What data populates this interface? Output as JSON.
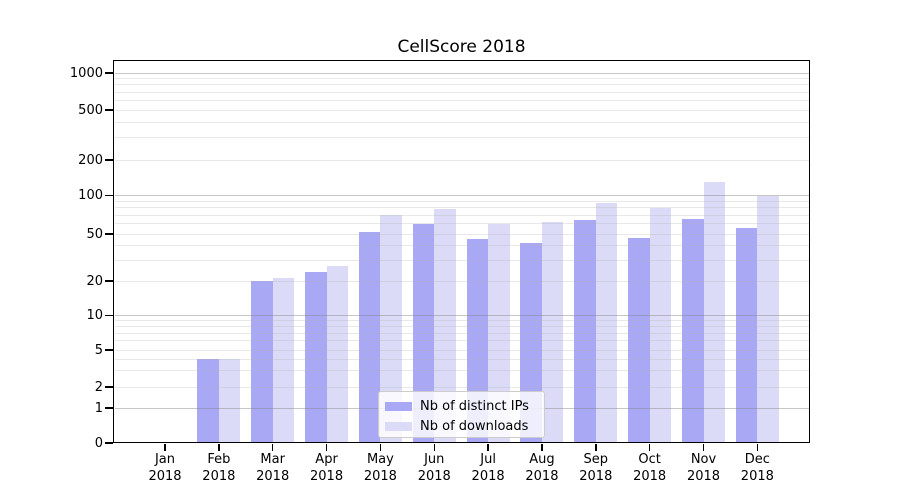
{
  "chart_data": {
    "type": "bar",
    "title": "CellScore 2018",
    "months": [
      "Jan",
      "Feb",
      "Mar",
      "Apr",
      "May",
      "Jun",
      "Jul",
      "Aug",
      "Sep",
      "Oct",
      "Nov",
      "Dec"
    ],
    "year": "2018",
    "categories": [
      "Jan 2018",
      "Feb 2018",
      "Mar 2018",
      "Apr 2018",
      "May 2018",
      "Jun 2018",
      "Jul 2018",
      "Aug 2018",
      "Sep 2018",
      "Oct 2018",
      "Nov 2018",
      "Dec 2018"
    ],
    "series": [
      {
        "name": "Nb of distinct IPs",
        "color": "#a8a8f5",
        "values": [
          0,
          4,
          20,
          24,
          52,
          60,
          45,
          42,
          64,
          46,
          66,
          56
        ]
      },
      {
        "name": "Nb of downloads",
        "color": "#dbdbf8",
        "values": [
          0,
          4,
          21,
          27,
          70,
          78,
          60,
          62,
          88,
          80,
          130,
          100
        ]
      }
    ],
    "y_ticks": [
      0,
      1,
      2,
      5,
      10,
      20,
      50,
      100,
      200,
      500,
      1000
    ],
    "grid_major": [
      1,
      10,
      100,
      1000
    ],
    "grid_minor": [
      2,
      3,
      4,
      5,
      6,
      7,
      8,
      9,
      20,
      30,
      40,
      50,
      60,
      70,
      80,
      90,
      200,
      300,
      400,
      500,
      600,
      700,
      800,
      900
    ],
    "yscale": "symlog",
    "ylim": [
      0,
      1000
    ],
    "grid": true,
    "legend_position": "lower center",
    "colors": {
      "grid_major": "rgba(130,130,130,0.45)",
      "grid_minor": "rgba(180,180,180,0.30)",
      "axis": "#000000",
      "background": "#ffffff"
    }
  }
}
